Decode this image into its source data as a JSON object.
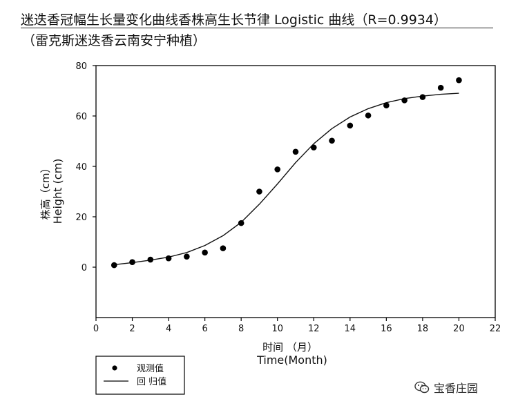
{
  "header": {
    "title": "迷迭香冠幅生长量变化曲线香株高生长节律 Logistic 曲线（R=0.9934）",
    "subtitle": "（雷克斯迷迭香云南安宁种植）"
  },
  "watermark": {
    "text": "宝香庄园",
    "icon": "wechat-icon"
  },
  "chart_data": {
    "type": "scatter",
    "xlabel_cn": "时间 （月）",
    "xlabel_en": "Time(Month)",
    "ylabel_cn": "株高（cm）",
    "ylabel_en": "Height (cm)",
    "xlim": [
      0,
      22
    ],
    "ylim": [
      -20,
      80
    ],
    "xticks": [
      0,
      2,
      4,
      6,
      8,
      10,
      12,
      14,
      16,
      18,
      20,
      22
    ],
    "yticks": [
      0,
      20,
      40,
      60,
      80
    ],
    "legend_position": "bottom-left",
    "series": [
      {
        "name": "观测值",
        "kind": "points",
        "x": [
          1,
          2,
          3,
          4,
          5,
          6,
          7,
          8,
          9,
          10,
          11,
          12,
          13,
          14,
          15,
          16,
          17,
          18,
          19,
          20
        ],
        "y": [
          0.8,
          2.0,
          3.0,
          3.5,
          4.2,
          5.8,
          7.5,
          17.5,
          30.0,
          38.8,
          45.8,
          47.5,
          50.2,
          56.2,
          60.2,
          64.2,
          66.2,
          67.5,
          71.2,
          74.2
        ]
      },
      {
        "name": "回 归值",
        "kind": "line",
        "x": [
          1,
          2,
          3,
          4,
          5,
          6,
          7,
          8,
          9,
          10,
          11,
          12,
          13,
          14,
          15,
          16,
          17,
          18,
          19,
          20
        ],
        "y": [
          1.0,
          1.8,
          2.8,
          4.0,
          5.8,
          8.6,
          12.5,
          17.8,
          25.0,
          33.0,
          41.5,
          49.0,
          55.0,
          59.6,
          62.9,
          65.3,
          66.9,
          67.9,
          68.6,
          69.0
        ]
      }
    ]
  }
}
